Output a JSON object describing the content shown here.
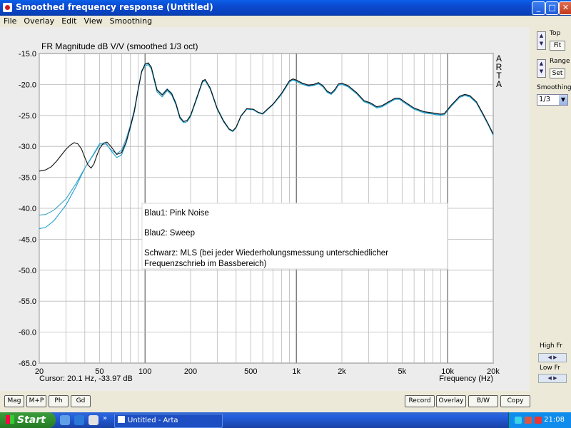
{
  "window": {
    "title": "Smoothed frequency response (Untitled)",
    "minimize": "_",
    "maximize": "□",
    "close": "✕"
  },
  "menu": [
    "File",
    "Overlay",
    "Edit",
    "View",
    "Smoothing"
  ],
  "plot": {
    "arta_letters": [
      "A",
      "R",
      "T",
      "A"
    ],
    "cursor_readout": "Cursor: 20.1 Hz, -33.97 dB",
    "legend_lines": [
      "Blau1: Pink Noise",
      "Blau2: Sweep",
      "Schwarz: MLS (bei jeder Wiederholungsmessung unterschiedlicher",
      "Frequenzschrieb im Bassbereich)"
    ]
  },
  "chart_data": {
    "type": "line",
    "title": "FR Magnitude dB V/V (smoothed 1/3 oct)",
    "xlabel": "Frequency (Hz)",
    "ylabel": "",
    "xscale": "log",
    "xlim": [
      20,
      20000
    ],
    "ylim": [
      -65,
      -15
    ],
    "grid": true,
    "x_ticks": [
      20,
      50,
      100,
      200,
      500,
      1000,
      2000,
      5000,
      10000,
      20000
    ],
    "x_tick_labels": [
      "20",
      "50",
      "100",
      "200",
      "500",
      "1k",
      "2k",
      "5k",
      "10k",
      "20k"
    ],
    "y_ticks": [
      -15,
      -20,
      -25,
      -30,
      -35,
      -40,
      -45,
      -50,
      -55,
      -60,
      -65
    ],
    "y_tick_labels": [
      "-15.0",
      "-20.0",
      "-25.0",
      "-30.0",
      "-35.0",
      "-40.0",
      "-45.0",
      "-50.0",
      "-55.0",
      "-60.0",
      "-65.0"
    ],
    "series": [
      {
        "name": "Blau1: Pink Noise",
        "color": "#1aa0cf",
        "points": [
          [
            20,
            -43.3
          ],
          [
            22,
            -43.1
          ],
          [
            25,
            -42.0
          ],
          [
            30,
            -39.5
          ],
          [
            35,
            -36.5
          ],
          [
            40,
            -33.5
          ],
          [
            45,
            -31.5
          ],
          [
            50,
            -29.6
          ],
          [
            55,
            -29.4
          ],
          [
            60,
            -30.8
          ],
          [
            65,
            -31.8
          ],
          [
            70,
            -31.4
          ],
          [
            75,
            -29.5
          ],
          [
            80,
            -27.0
          ],
          [
            85,
            -24.5
          ],
          [
            90,
            -21.0
          ],
          [
            95,
            -18.0
          ],
          [
            100,
            -17.0
          ],
          [
            105,
            -16.8
          ],
          [
            110,
            -17.5
          ],
          [
            120,
            -21.2
          ],
          [
            130,
            -22.0
          ],
          [
            140,
            -21.0
          ],
          [
            150,
            -21.7
          ],
          [
            160,
            -23.3
          ],
          [
            170,
            -25.5
          ],
          [
            180,
            -26.2
          ],
          [
            190,
            -26.0
          ],
          [
            200,
            -25.2
          ],
          [
            220,
            -22.3
          ],
          [
            240,
            -19.6
          ],
          [
            250,
            -19.4
          ],
          [
            270,
            -20.8
          ],
          [
            300,
            -24.0
          ],
          [
            330,
            -26.0
          ],
          [
            360,
            -27.3
          ],
          [
            380,
            -27.6
          ],
          [
            400,
            -27.0
          ],
          [
            430,
            -25.2
          ],
          [
            470,
            -24.0
          ],
          [
            520,
            -24.1
          ],
          [
            560,
            -24.6
          ],
          [
            600,
            -24.8
          ],
          [
            650,
            -24.0
          ],
          [
            700,
            -23.3
          ],
          [
            800,
            -21.6
          ],
          [
            900,
            -19.6
          ],
          [
            950,
            -19.3
          ],
          [
            1000,
            -19.5
          ],
          [
            1100,
            -20.0
          ],
          [
            1200,
            -20.3
          ],
          [
            1300,
            -20.2
          ],
          [
            1400,
            -19.9
          ],
          [
            1500,
            -20.4
          ],
          [
            1600,
            -21.3
          ],
          [
            1700,
            -21.6
          ],
          [
            1800,
            -21.0
          ],
          [
            1900,
            -20.1
          ],
          [
            2000,
            -20.0
          ],
          [
            2200,
            -20.4
          ],
          [
            2500,
            -21.5
          ],
          [
            2800,
            -22.8
          ],
          [
            3100,
            -23.2
          ],
          [
            3400,
            -23.8
          ],
          [
            3700,
            -23.6
          ],
          [
            4000,
            -23.1
          ],
          [
            4500,
            -22.4
          ],
          [
            4800,
            -22.4
          ],
          [
            5200,
            -23.0
          ],
          [
            6000,
            -24.0
          ],
          [
            7000,
            -24.6
          ],
          [
            8000,
            -24.8
          ],
          [
            9000,
            -25.0
          ],
          [
            9500,
            -24.9
          ],
          [
            10500,
            -23.6
          ],
          [
            12000,
            -22.1
          ],
          [
            13000,
            -21.8
          ],
          [
            14000,
            -22.0
          ],
          [
            15500,
            -23.0
          ],
          [
            17000,
            -24.8
          ],
          [
            18500,
            -26.5
          ],
          [
            20000,
            -28.2
          ]
        ]
      },
      {
        "name": "Blau2: Sweep",
        "color": "#3a9fc8",
        "points": [
          [
            20,
            -41.1
          ],
          [
            22,
            -41.0
          ],
          [
            25,
            -40.3
          ],
          [
            30,
            -38.5
          ],
          [
            35,
            -36.0
          ],
          [
            40,
            -33.5
          ],
          [
            45,
            -31.6
          ],
          [
            50,
            -29.8
          ],
          [
            55,
            -29.6
          ],
          [
            60,
            -30.6
          ],
          [
            65,
            -31.2
          ],
          [
            70,
            -30.6
          ],
          [
            75,
            -28.8
          ],
          [
            80,
            -26.6
          ],
          [
            85,
            -24.1
          ],
          [
            90,
            -20.8
          ],
          [
            95,
            -17.8
          ],
          [
            100,
            -16.8
          ],
          [
            105,
            -16.6
          ],
          [
            110,
            -17.3
          ],
          [
            120,
            -20.8
          ],
          [
            130,
            -21.6
          ],
          [
            140,
            -20.7
          ],
          [
            150,
            -21.4
          ],
          [
            160,
            -23.0
          ],
          [
            170,
            -25.2
          ],
          [
            180,
            -26.0
          ],
          [
            190,
            -25.8
          ],
          [
            200,
            -25.0
          ],
          [
            220,
            -22.1
          ],
          [
            240,
            -19.4
          ],
          [
            250,
            -19.3
          ],
          [
            270,
            -20.6
          ],
          [
            300,
            -23.8
          ],
          [
            330,
            -25.8
          ],
          [
            360,
            -27.2
          ],
          [
            380,
            -27.5
          ],
          [
            400,
            -26.9
          ],
          [
            430,
            -25.1
          ],
          [
            470,
            -23.9
          ],
          [
            520,
            -24.0
          ],
          [
            560,
            -24.5
          ],
          [
            600,
            -24.7
          ],
          [
            650,
            -23.9
          ],
          [
            700,
            -23.2
          ],
          [
            800,
            -21.5
          ],
          [
            900,
            -19.5
          ],
          [
            950,
            -19.2
          ],
          [
            1000,
            -19.4
          ],
          [
            1100,
            -19.9
          ],
          [
            1200,
            -20.2
          ],
          [
            1300,
            -20.1
          ],
          [
            1400,
            -19.8
          ],
          [
            1500,
            -20.3
          ],
          [
            1600,
            -21.2
          ],
          [
            1700,
            -21.5
          ],
          [
            1800,
            -20.9
          ],
          [
            1900,
            -20.0
          ],
          [
            2000,
            -19.9
          ],
          [
            2200,
            -20.3
          ],
          [
            2500,
            -21.4
          ],
          [
            2800,
            -22.7
          ],
          [
            3100,
            -23.1
          ],
          [
            3400,
            -23.7
          ],
          [
            3700,
            -23.5
          ],
          [
            4000,
            -23.0
          ],
          [
            4500,
            -22.3
          ],
          [
            4800,
            -22.3
          ],
          [
            5200,
            -22.9
          ],
          [
            6000,
            -23.9
          ],
          [
            7000,
            -24.5
          ],
          [
            8000,
            -24.7
          ],
          [
            9000,
            -24.9
          ],
          [
            9500,
            -24.8
          ],
          [
            10500,
            -23.5
          ],
          [
            12000,
            -22.0
          ],
          [
            13000,
            -21.7
          ],
          [
            14000,
            -21.9
          ],
          [
            15500,
            -22.9
          ],
          [
            17000,
            -24.7
          ],
          [
            18500,
            -26.4
          ],
          [
            20000,
            -28.1
          ]
        ]
      },
      {
        "name": "Schwarz: MLS",
        "color": "#111111",
        "points": [
          [
            20,
            -34.0
          ],
          [
            22,
            -33.8
          ],
          [
            24,
            -33.3
          ],
          [
            26,
            -32.4
          ],
          [
            28,
            -31.4
          ],
          [
            30,
            -30.5
          ],
          [
            32,
            -29.8
          ],
          [
            34,
            -29.4
          ],
          [
            36,
            -29.6
          ],
          [
            38,
            -30.4
          ],
          [
            40,
            -31.8
          ],
          [
            42,
            -33.0
          ],
          [
            44,
            -33.5
          ],
          [
            46,
            -32.8
          ],
          [
            48,
            -31.5
          ],
          [
            50,
            -30.4
          ],
          [
            53,
            -29.5
          ],
          [
            56,
            -29.3
          ],
          [
            60,
            -30.1
          ],
          [
            65,
            -31.3
          ],
          [
            70,
            -31.0
          ],
          [
            75,
            -29.3
          ],
          [
            80,
            -26.9
          ],
          [
            85,
            -24.3
          ],
          [
            90,
            -20.8
          ],
          [
            95,
            -17.9
          ],
          [
            100,
            -16.7
          ],
          [
            105,
            -16.5
          ],
          [
            110,
            -17.2
          ],
          [
            120,
            -20.9
          ],
          [
            130,
            -21.7
          ],
          [
            140,
            -20.8
          ],
          [
            150,
            -21.5
          ],
          [
            160,
            -23.1
          ],
          [
            170,
            -25.3
          ],
          [
            180,
            -26.0
          ],
          [
            190,
            -25.8
          ],
          [
            200,
            -25.0
          ],
          [
            220,
            -22.1
          ],
          [
            240,
            -19.4
          ],
          [
            250,
            -19.2
          ],
          [
            270,
            -20.6
          ],
          [
            300,
            -23.9
          ],
          [
            330,
            -25.9
          ],
          [
            360,
            -27.2
          ],
          [
            380,
            -27.5
          ],
          [
            400,
            -26.9
          ],
          [
            430,
            -25.1
          ],
          [
            470,
            -23.9
          ],
          [
            520,
            -24.0
          ],
          [
            560,
            -24.5
          ],
          [
            600,
            -24.7
          ],
          [
            650,
            -23.9
          ],
          [
            700,
            -23.2
          ],
          [
            800,
            -21.4
          ],
          [
            900,
            -19.4
          ],
          [
            950,
            -19.1
          ],
          [
            1000,
            -19.3
          ],
          [
            1100,
            -19.8
          ],
          [
            1200,
            -20.1
          ],
          [
            1300,
            -20.0
          ],
          [
            1400,
            -19.7
          ],
          [
            1500,
            -20.2
          ],
          [
            1600,
            -21.1
          ],
          [
            1700,
            -21.4
          ],
          [
            1800,
            -20.8
          ],
          [
            1900,
            -19.9
          ],
          [
            2000,
            -19.8
          ],
          [
            2200,
            -20.2
          ],
          [
            2500,
            -21.3
          ],
          [
            2800,
            -22.6
          ],
          [
            3100,
            -23.0
          ],
          [
            3400,
            -23.6
          ],
          [
            3700,
            -23.4
          ],
          [
            4000,
            -22.9
          ],
          [
            4500,
            -22.2
          ],
          [
            4800,
            -22.2
          ],
          [
            5200,
            -22.8
          ],
          [
            6000,
            -23.8
          ],
          [
            7000,
            -24.4
          ],
          [
            8000,
            -24.6
          ],
          [
            9000,
            -24.8
          ],
          [
            9500,
            -24.7
          ],
          [
            10500,
            -23.4
          ],
          [
            12000,
            -21.9
          ],
          [
            13000,
            -21.6
          ],
          [
            14000,
            -21.8
          ],
          [
            15500,
            -22.8
          ],
          [
            17000,
            -24.6
          ],
          [
            18500,
            -26.3
          ],
          [
            20000,
            -28.0
          ]
        ]
      }
    ]
  },
  "sidebar": {
    "top_label": "Top",
    "fit_button": "Fit",
    "range_label": "Range",
    "set_button": "Set",
    "smoothing_label": "Smoothing",
    "smoothing_value": "1/3",
    "high_fr_label": "High Fr",
    "low_fr_label": "Low Fr",
    "up_glyph": "▲",
    "down_glyph": "▼",
    "left_glyph": "◀",
    "right_glyph": "▶"
  },
  "bottom_buttons": {
    "mag": "Mag",
    "mp": "M+P",
    "ph": "Ph",
    "gd": "Gd",
    "record": "Record",
    "overlay": "Overlay",
    "bw": "B/W",
    "copy": "Copy"
  },
  "taskbar": {
    "start": "Start",
    "task_label": "Untitled - Arta",
    "clock": "21:08",
    "quicklaunch_more": "»"
  }
}
